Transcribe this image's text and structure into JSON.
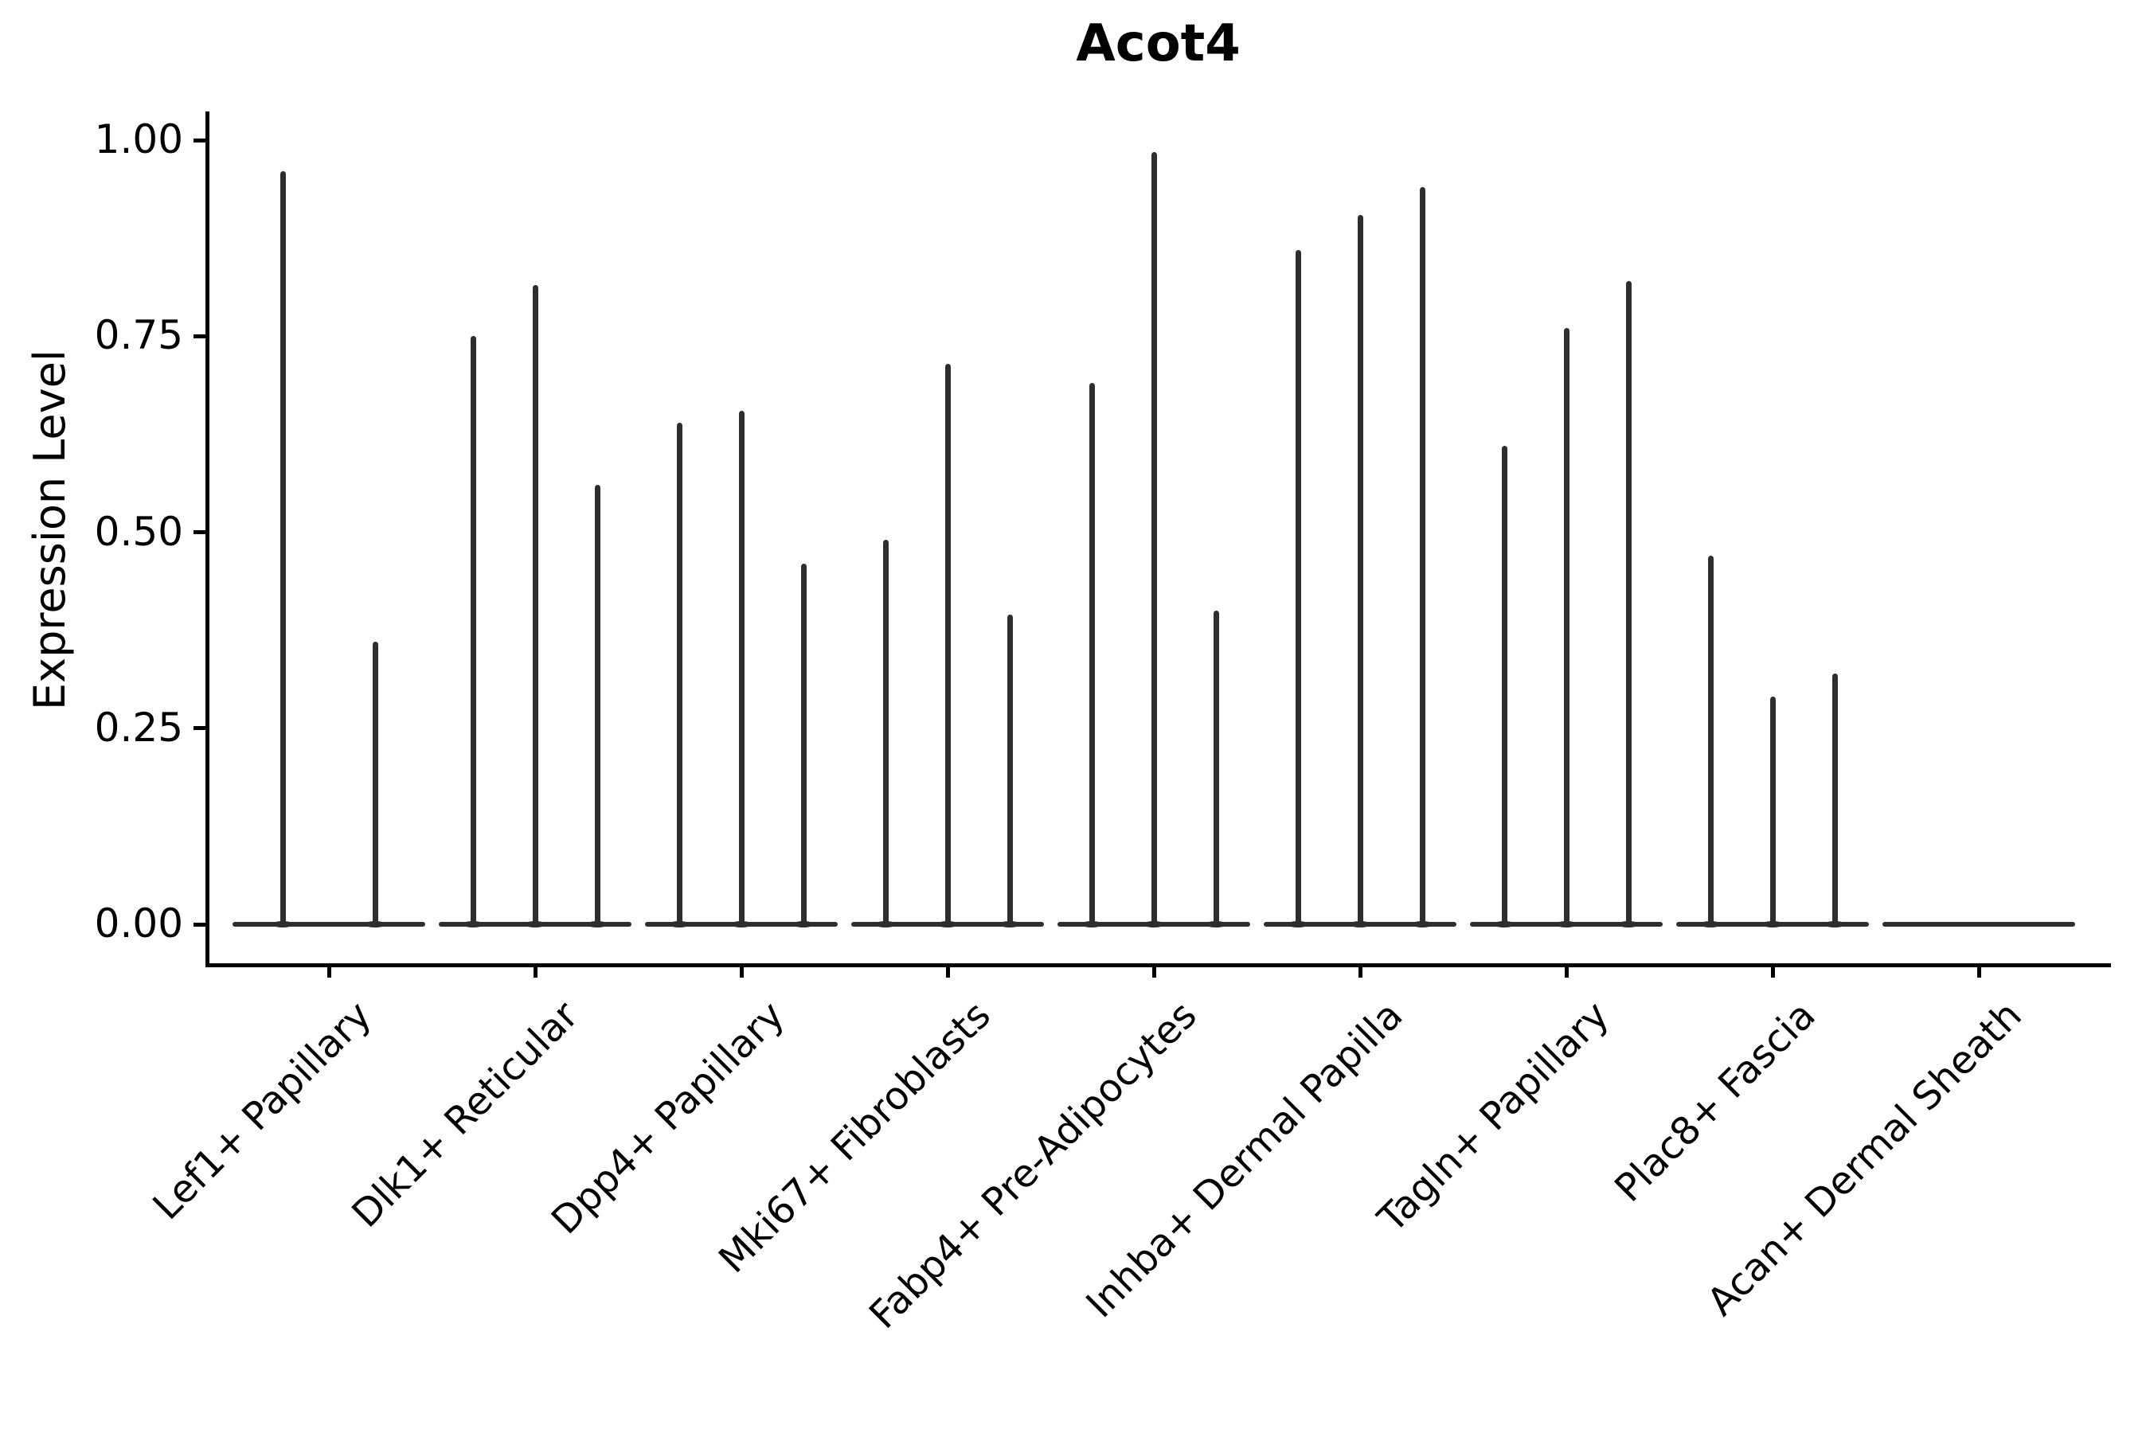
{
  "title": "Acot4",
  "colors": {
    "ink": "#000000",
    "violin": "#2e2e2e",
    "background": "#ffffff"
  },
  "chart_data": {
    "type": "violin",
    "title": "Acot4",
    "xlabel": "",
    "ylabel": "Expression Level",
    "ylim": [
      0,
      1.0
    ],
    "ytick_labels": [
      "0.00",
      "0.25",
      "0.50",
      "0.75",
      "1.00"
    ],
    "ytick_values": [
      0,
      0.25,
      0.5,
      0.75,
      1.0
    ],
    "grid": false,
    "legend_position": "none",
    "categories": [
      "Lef1+ Papillary",
      "Dlk1+ Reticular",
      "Dpp4+ Papillary",
      "Mki67+ Fibroblasts",
      "Fabp4+ Pre-Adipocytes",
      "Inhba+ Dermal Papilla",
      "Tagln+ Papillary",
      "Plac8+ Fascia",
      "Acan+ Dermal Sheath"
    ],
    "violins": [
      {
        "category": "Lef1+ Papillary",
        "spikes": [
          {
            "offset": -0.225,
            "max": 0.96
          },
          {
            "offset": 0.225,
            "max": 0.36
          }
        ]
      },
      {
        "category": "Dlk1+ Reticular",
        "spikes": [
          {
            "offset": -0.3,
            "max": 0.75
          },
          {
            "offset": 0,
            "max": 0.815
          },
          {
            "offset": 0.3,
            "max": 0.56
          }
        ]
      },
      {
        "category": "Dpp4+ Papillary",
        "spikes": [
          {
            "offset": -0.3,
            "max": 0.64
          },
          {
            "offset": 0,
            "max": 0.655
          },
          {
            "offset": 0.3,
            "max": 0.46
          }
        ]
      },
      {
        "category": "Mki67+ Fibroblasts",
        "spikes": [
          {
            "offset": -0.3,
            "max": 0.49
          },
          {
            "offset": 0,
            "max": 0.715
          },
          {
            "offset": 0.3,
            "max": 0.395
          }
        ]
      },
      {
        "category": "Fabp4+ Pre-Adipocytes",
        "spikes": [
          {
            "offset": -0.3,
            "max": 0.69
          },
          {
            "offset": 0,
            "max": 0.985
          },
          {
            "offset": 0.3,
            "max": 0.4
          }
        ]
      },
      {
        "category": "Inhba+ Dermal Papilla",
        "spikes": [
          {
            "offset": -0.3,
            "max": 0.86
          },
          {
            "offset": 0,
            "max": 0.905
          },
          {
            "offset": 0.3,
            "max": 0.94
          }
        ]
      },
      {
        "category": "Tagln+ Papillary",
        "spikes": [
          {
            "offset": -0.3,
            "max": 0.61
          },
          {
            "offset": 0,
            "max": 0.76
          },
          {
            "offset": 0.3,
            "max": 0.82
          }
        ]
      },
      {
        "category": "Plac8+ Fascia",
        "spikes": [
          {
            "offset": -0.3,
            "max": 0.47
          },
          {
            "offset": 0,
            "max": 0.29
          },
          {
            "offset": 0.3,
            "max": 0.32
          }
        ]
      },
      {
        "category": "Acan+ Dermal Sheath",
        "spikes": []
      }
    ]
  }
}
